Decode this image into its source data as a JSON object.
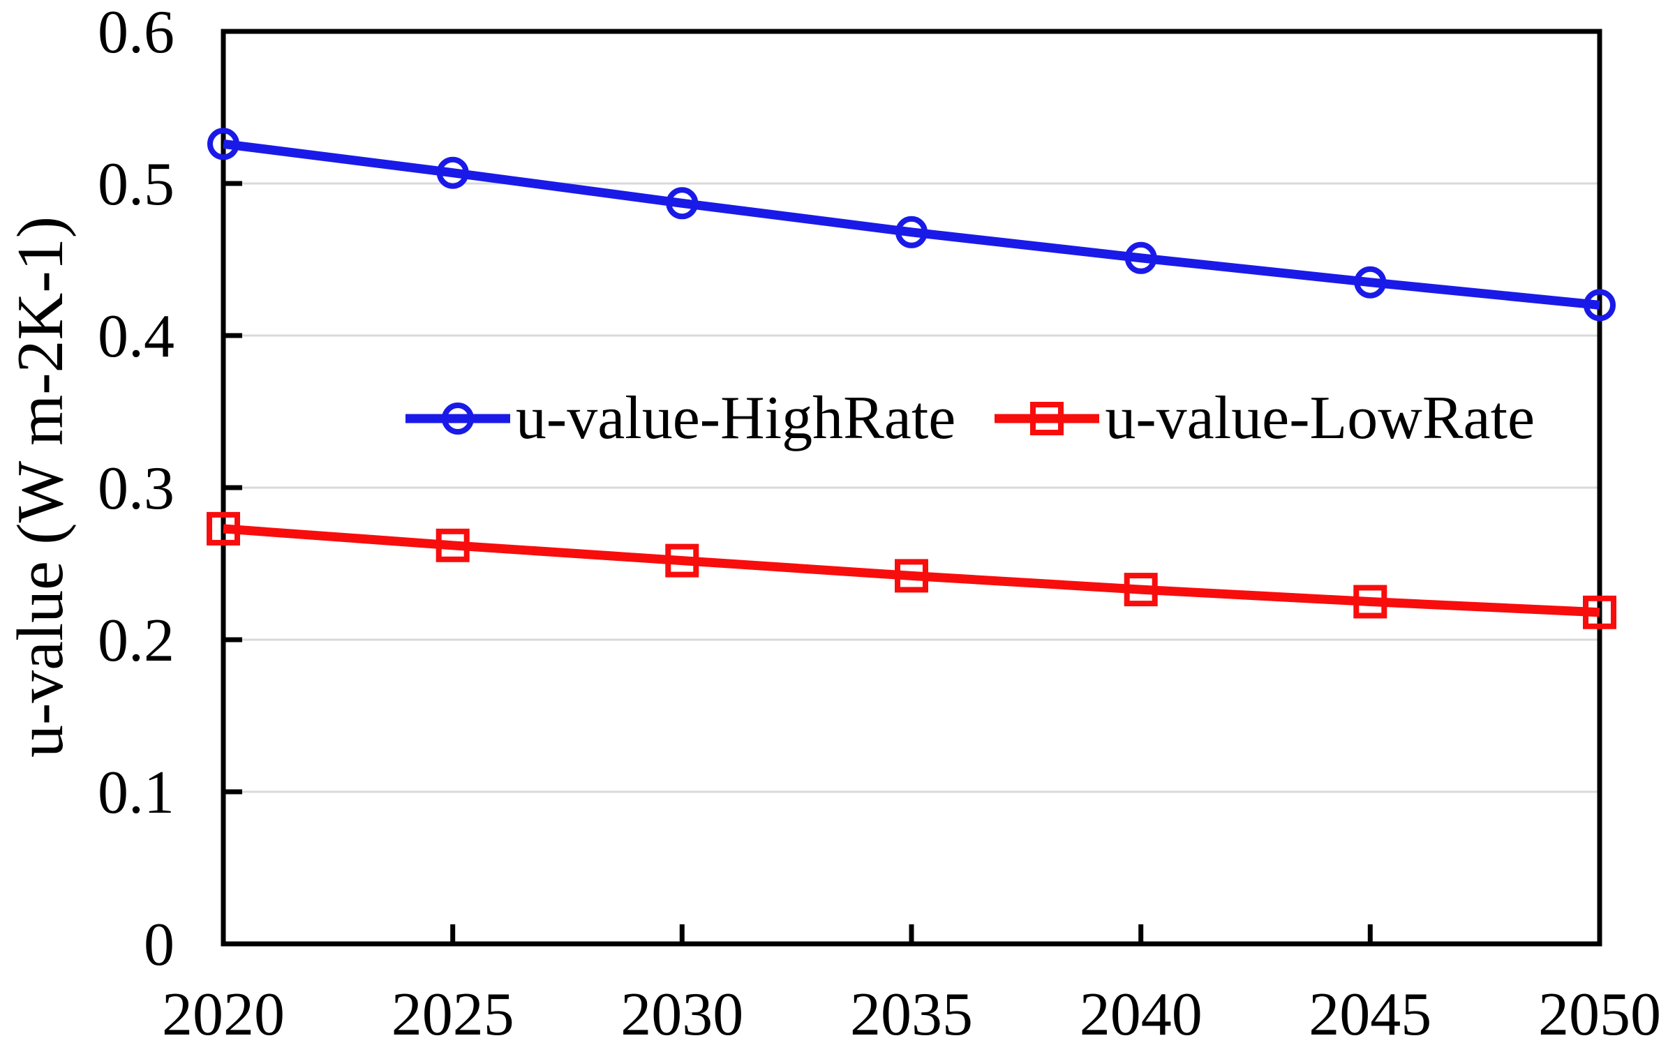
{
  "figure": {
    "background_color": "#FFFFFF"
  },
  "chart_data": {
    "type": "line",
    "title": "",
    "xlabel": "",
    "ylabel": "u-value (W m-2K-1)",
    "x": [
      2020,
      2025,
      2030,
      2035,
      2040,
      2045,
      2050
    ],
    "xtick_labels": [
      "2020",
      "2025",
      "2030",
      "2035",
      "2040",
      "2045",
      "2050"
    ],
    "xlim": [
      2020,
      2050
    ],
    "ylim": [
      0,
      0.6
    ],
    "yticks": [
      0,
      0.1,
      0.2,
      0.3,
      0.4,
      0.5,
      0.6
    ],
    "ytick_labels": [
      "0",
      "0.1",
      "0.2",
      "0.3",
      "0.4",
      "0.5",
      "0.6"
    ],
    "grid": "horizontal",
    "gridline_color": "#D9D9D9",
    "axis_color": "#000000",
    "legend_position": "inside-center",
    "series": [
      {
        "name": "u-value-HighRate",
        "color": "#1A1AE8",
        "marker": "circle",
        "values": [
          0.526,
          0.507,
          0.487,
          0.468,
          0.451,
          0.435,
          0.42
        ]
      },
      {
        "name": "u-value-LowRate",
        "color": "#F80D0D",
        "marker": "square",
        "values": [
          0.273,
          0.262,
          0.252,
          0.242,
          0.233,
          0.225,
          0.218
        ]
      }
    ]
  }
}
